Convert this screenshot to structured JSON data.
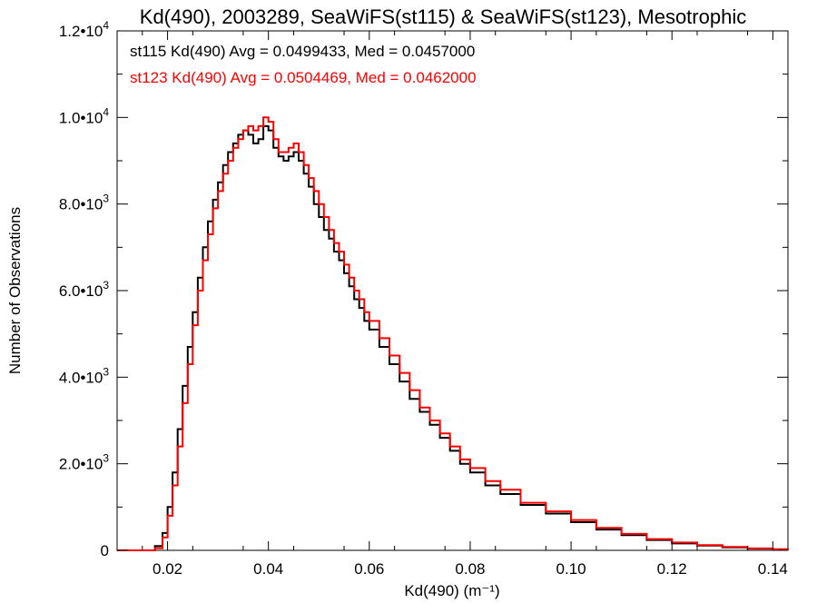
{
  "chart_data": {
    "type": "line",
    "title": "Kd(490), 2003289, SeaWiFS(st115) & SeaWiFS(st123), Mesotrophic",
    "xlabel": "Kd(490) (m⁻¹)",
    "ylabel": "Number of Observations",
    "xlim": [
      0.01,
      0.143
    ],
    "ylim": [
      0,
      12000
    ],
    "x_ticks": [
      {
        "value": 0.02,
        "label": "0.02"
      },
      {
        "value": 0.04,
        "label": "0.04"
      },
      {
        "value": 0.06,
        "label": "0.06"
      },
      {
        "value": 0.08,
        "label": "0.08"
      },
      {
        "value": 0.1,
        "label": "0.10"
      },
      {
        "value": 0.12,
        "label": "0.12"
      },
      {
        "value": 0.14,
        "label": "0.14"
      }
    ],
    "y_ticks": [
      {
        "value": 0,
        "mant": "0",
        "exp": ""
      },
      {
        "value": 2000,
        "mant": "2.0•10",
        "exp": "3"
      },
      {
        "value": 4000,
        "mant": "4.0•10",
        "exp": "3"
      },
      {
        "value": 6000,
        "mant": "6.0•10",
        "exp": "3"
      },
      {
        "value": 8000,
        "mant": "8.0•10",
        "exp": "3"
      },
      {
        "value": 10000,
        "mant": "1.0•10",
        "exp": "4"
      },
      {
        "value": 12000,
        "mant": "1.2•10",
        "exp": "4"
      }
    ],
    "grid": false,
    "legend_position": "top-left",
    "series": [
      {
        "name": "st115 Kd(490) Avg = 0.0499433, Med = 0.0457000",
        "color": "#000000",
        "style": "step",
        "x": [
          0.01,
          0.015,
          0.0175,
          0.019,
          0.02,
          0.021,
          0.022,
          0.023,
          0.024,
          0.025,
          0.026,
          0.027,
          0.028,
          0.029,
          0.03,
          0.031,
          0.032,
          0.033,
          0.034,
          0.035,
          0.036,
          0.037,
          0.038,
          0.039,
          0.04,
          0.041,
          0.042,
          0.043,
          0.044,
          0.045,
          0.046,
          0.047,
          0.048,
          0.049,
          0.05,
          0.051,
          0.052,
          0.053,
          0.054,
          0.055,
          0.056,
          0.057,
          0.058,
          0.059,
          0.06,
          0.062,
          0.064,
          0.066,
          0.068,
          0.07,
          0.072,
          0.074,
          0.076,
          0.078,
          0.08,
          0.083,
          0.086,
          0.09,
          0.095,
          0.1,
          0.105,
          0.11,
          0.115,
          0.12,
          0.125,
          0.13,
          0.135,
          0.14,
          0.143
        ],
        "y": [
          0,
          0,
          100,
          400,
          1000,
          1800,
          2800,
          3800,
          4700,
          5500,
          6300,
          7000,
          7600,
          8100,
          8500,
          8900,
          9200,
          9400,
          9600,
          9700,
          9600,
          9400,
          9500,
          9800,
          9700,
          9300,
          9100,
          9000,
          9100,
          9200,
          9000,
          8700,
          8400,
          8000,
          7700,
          7400,
          7200,
          6900,
          6700,
          6400,
          6100,
          5800,
          5600,
          5300,
          5100,
          4700,
          4300,
          3900,
          3500,
          3200,
          2900,
          2600,
          2300,
          2000,
          1800,
          1500,
          1300,
          1050,
          850,
          650,
          480,
          350,
          240,
          160,
          110,
          70,
          40,
          20,
          10
        ]
      },
      {
        "name": "st123 Kd(490) Avg = 0.0504469, Med = 0.0462000",
        "color": "#ff0000",
        "style": "step",
        "x": [
          0.01,
          0.015,
          0.0175,
          0.019,
          0.02,
          0.021,
          0.022,
          0.023,
          0.024,
          0.025,
          0.026,
          0.027,
          0.028,
          0.029,
          0.03,
          0.031,
          0.032,
          0.033,
          0.034,
          0.035,
          0.036,
          0.037,
          0.038,
          0.039,
          0.04,
          0.041,
          0.042,
          0.043,
          0.044,
          0.045,
          0.046,
          0.047,
          0.048,
          0.049,
          0.05,
          0.051,
          0.052,
          0.053,
          0.054,
          0.055,
          0.056,
          0.057,
          0.058,
          0.059,
          0.06,
          0.062,
          0.064,
          0.066,
          0.068,
          0.07,
          0.072,
          0.074,
          0.076,
          0.078,
          0.08,
          0.083,
          0.086,
          0.09,
          0.095,
          0.1,
          0.105,
          0.11,
          0.115,
          0.12,
          0.125,
          0.13,
          0.135,
          0.14,
          0.143
        ],
        "y": [
          0,
          0,
          50,
          300,
          800,
          1500,
          2400,
          3400,
          4300,
          5200,
          6000,
          6700,
          7300,
          7900,
          8300,
          8700,
          9000,
          9300,
          9500,
          9700,
          9800,
          9700,
          9800,
          10000,
          9900,
          9500,
          9200,
          9200,
          9300,
          9400,
          9200,
          8900,
          8600,
          8300,
          8000,
          7700,
          7400,
          7100,
          6900,
          6600,
          6300,
          6000,
          5800,
          5500,
          5300,
          4900,
          4500,
          4100,
          3700,
          3300,
          3000,
          2700,
          2400,
          2100,
          1900,
          1600,
          1400,
          1100,
          900,
          700,
          520,
          380,
          260,
          180,
          120,
          80,
          45,
          25,
          10
        ]
      }
    ]
  }
}
